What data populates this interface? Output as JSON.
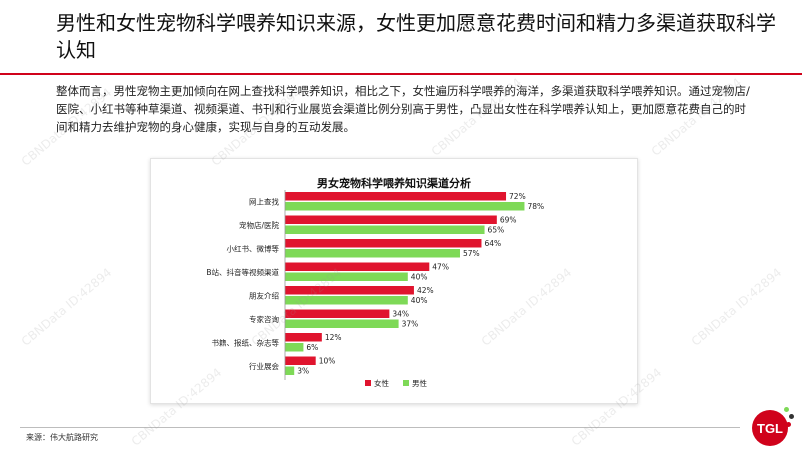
{
  "page": {
    "title": "男性和女性宠物科学喂养知识来源，女性更加愿意花费时间和精力多渠道获取科学认知",
    "intro": "整体而言，男性宠物主更加倾向在网上查找科学喂养知识，相比之下，女性遍历科学喂养的海洋，多渠道获取科学喂养知识。通过宠物店/医院、小红书等种草渠道、视频渠道、书刊和行业展览会渠道比例分别高于男性，凸显出女性在科学喂养认知上，更加愿意花费自己的时间和精力去维护宠物的身心健康，实现与自身的互动发展。",
    "source": "来源：伟大航路研究",
    "logo_text": "TGL",
    "watermark": "CBNData ID:42894"
  },
  "colors": {
    "accent": "#d0021b",
    "female": "#e0142e",
    "male": "#7ed957"
  },
  "chart_data": {
    "type": "bar",
    "orientation": "horizontal",
    "title": "男女宠物科学喂养知识渠道分析",
    "categories": [
      "网上查找",
      "宠物店/医院",
      "小红书、微博等",
      "B站、抖音等视频渠道",
      "朋友介绍",
      "专家咨询",
      "书籍、报纸、杂志等",
      "行业展会"
    ],
    "series": [
      {
        "name": "女性",
        "values": [
          72,
          69,
          64,
          47,
          42,
          34,
          12,
          10
        ]
      },
      {
        "name": "男性",
        "values": [
          78,
          65,
          57,
          40,
          40,
          37,
          6,
          3
        ]
      }
    ],
    "value_suffix": "%",
    "xlim": [
      0,
      100
    ],
    "legend": "bottom",
    "grid": false
  }
}
